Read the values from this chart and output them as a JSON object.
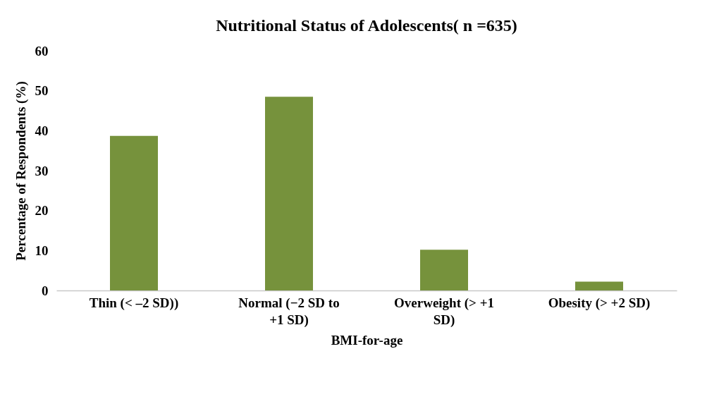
{
  "chart_data": {
    "type": "bar",
    "title": "Nutritional Status of Adolescents( n =635)",
    "xlabel": "BMI-for-age",
    "ylabel": "Percentage of Respondents (%)",
    "categories": [
      "Thin  (< –2 SD))",
      "Normal (−2 SD to +1 SD)",
      "Overweight (> +1 SD)",
      "Obesity (> +2 SD)"
    ],
    "values": [
      38.7,
      48.5,
      10.2,
      2.2
    ],
    "color": "#76923c",
    "ylim": [
      0,
      60
    ],
    "yticks": [
      0,
      10,
      20,
      30,
      40,
      50,
      60
    ],
    "grid": false
  }
}
